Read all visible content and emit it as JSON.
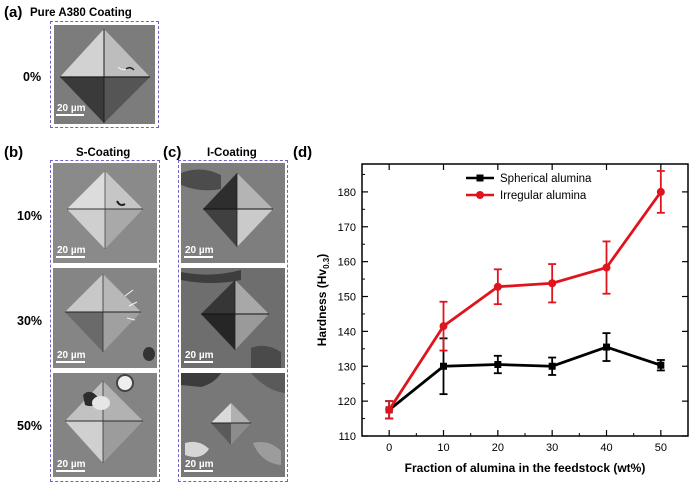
{
  "panels": {
    "a": {
      "letter": "(a)",
      "title": "Pure A380 Coating",
      "row_label": "0%",
      "scale": "20 µm"
    },
    "b": {
      "letter": "(b)",
      "title": "S-Coating"
    },
    "c": {
      "letter": "(c)",
      "title": "I-Coating"
    },
    "d": {
      "letter": "(d)"
    },
    "rows": [
      {
        "label": "10%",
        "scale_s": "20 µm",
        "scale_i": "20 µm"
      },
      {
        "label": "30%",
        "scale_s": "20 µm",
        "scale_i": "20 µm"
      },
      {
        "label": "50%",
        "scale_s": "20 µm",
        "scale_i": "20 µm"
      }
    ]
  },
  "chart_data": {
    "type": "line",
    "xlabel": "Fraction of alumina in the feedstock (wt%)",
    "ylabel": "Hardness (Hv",
    "ylabel_sub": "0.3",
    "ylabel_close": ")",
    "x": [
      0,
      10,
      20,
      30,
      40,
      50
    ],
    "xlim": [
      -5,
      55
    ],
    "ylim": [
      110,
      188
    ],
    "xticks": [
      "0",
      "10",
      "20",
      "30",
      "40",
      "50"
    ],
    "yticks": [
      "110",
      "120",
      "130",
      "140",
      "150",
      "160",
      "170",
      "180"
    ],
    "legend_position": "top-left",
    "series": [
      {
        "name": "Spherical alumina",
        "color": "#000000",
        "values": [
          117.5,
          130,
          130.5,
          130,
          135.5,
          130.3
        ],
        "errors": [
          2.5,
          8,
          2.5,
          2.5,
          4,
          1.5
        ]
      },
      {
        "name": "Irregular alumina",
        "color": "#e0141e",
        "values": [
          117.5,
          141.5,
          152.8,
          153.8,
          158.3,
          180
        ],
        "errors": [
          2.5,
          7,
          5,
          5.5,
          7.5,
          6
        ]
      }
    ]
  }
}
